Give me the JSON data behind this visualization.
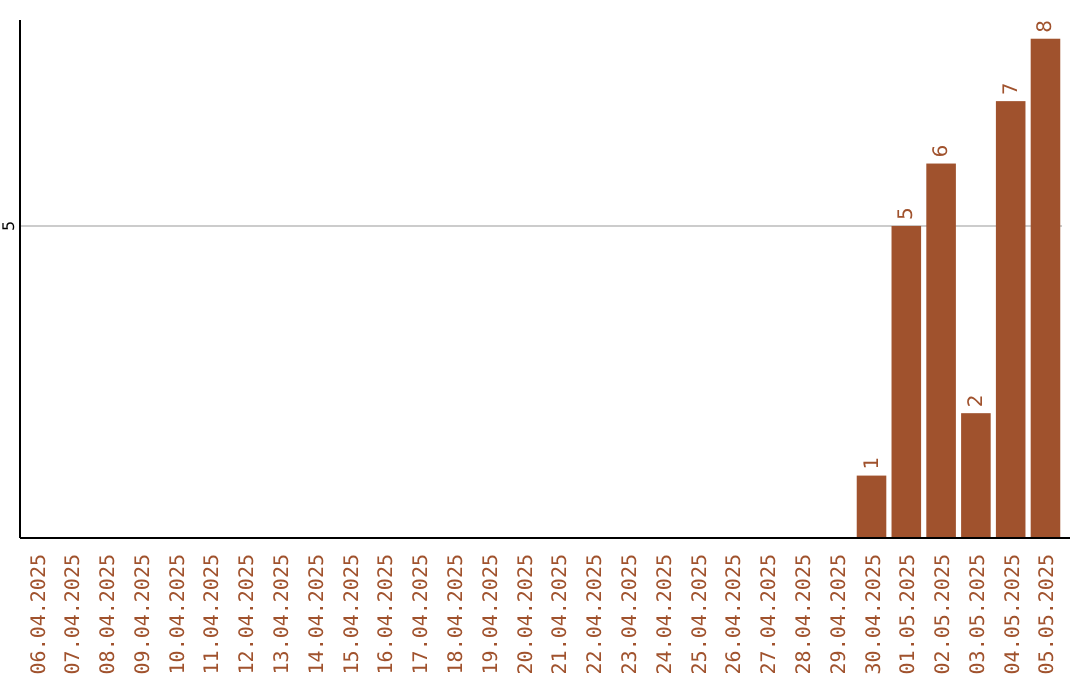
{
  "chart_data": {
    "type": "bar",
    "categories": [
      "06.04.2025",
      "07.04.2025",
      "08.04.2025",
      "09.04.2025",
      "10.04.2025",
      "11.04.2025",
      "12.04.2025",
      "13.04.2025",
      "14.04.2025",
      "15.04.2025",
      "16.04.2025",
      "17.04.2025",
      "18.04.2025",
      "19.04.2025",
      "20.04.2025",
      "21.04.2025",
      "22.04.2025",
      "23.04.2025",
      "24.04.2025",
      "25.04.2025",
      "26.04.2025",
      "27.04.2025",
      "28.04.2025",
      "29.04.2025",
      "30.04.2025",
      "01.05.2025",
      "02.05.2025",
      "03.05.2025",
      "04.05.2025",
      "05.05.2025"
    ],
    "values": [
      null,
      null,
      null,
      null,
      null,
      null,
      null,
      null,
      null,
      null,
      null,
      null,
      null,
      null,
      null,
      null,
      null,
      null,
      null,
      null,
      null,
      null,
      null,
      null,
      1,
      5,
      6,
      2,
      7,
      8
    ],
    "data_labels": true,
    "color": "#a0522d",
    "ylim": [
      0,
      8.3
    ],
    "yticks": [
      5
    ],
    "grid": "y"
  }
}
